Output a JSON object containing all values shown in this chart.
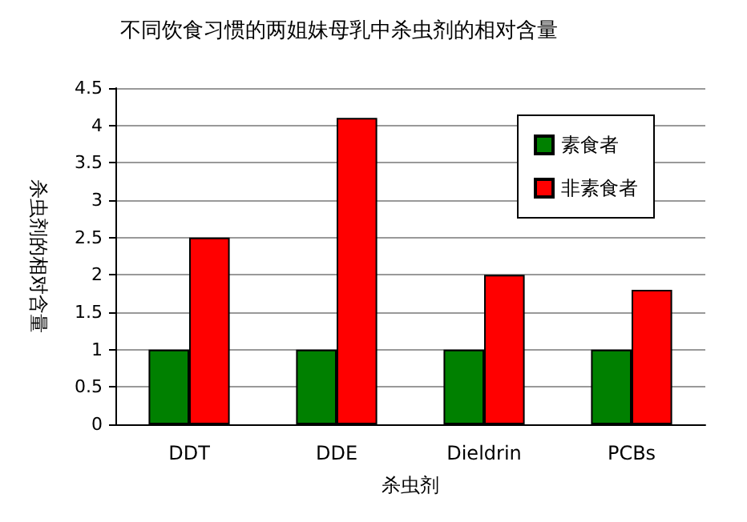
{
  "chart_data": {
    "type": "bar",
    "title": "不同饮食习惯的两姐妹母乳中杀虫剂的相对含量",
    "xlabel": "杀虫剂",
    "ylabel": "杀虫剂的相对含量",
    "categories": [
      "DDT",
      "DDE",
      "Dieldrin",
      "PCBs"
    ],
    "series": [
      {
        "name": "素食者",
        "color": "#008000",
        "values": [
          1,
          1,
          1,
          1
        ]
      },
      {
        "name": "非素食者",
        "color": "#ff0000",
        "values": [
          2.5,
          4.1,
          2,
          1.8
        ]
      }
    ],
    "ylim": [
      0,
      4.5
    ],
    "yticks": [
      0,
      0.5,
      1,
      1.5,
      2,
      2.5,
      3,
      3.5,
      4,
      4.5
    ],
    "grid": "y",
    "legend": "top right"
  }
}
